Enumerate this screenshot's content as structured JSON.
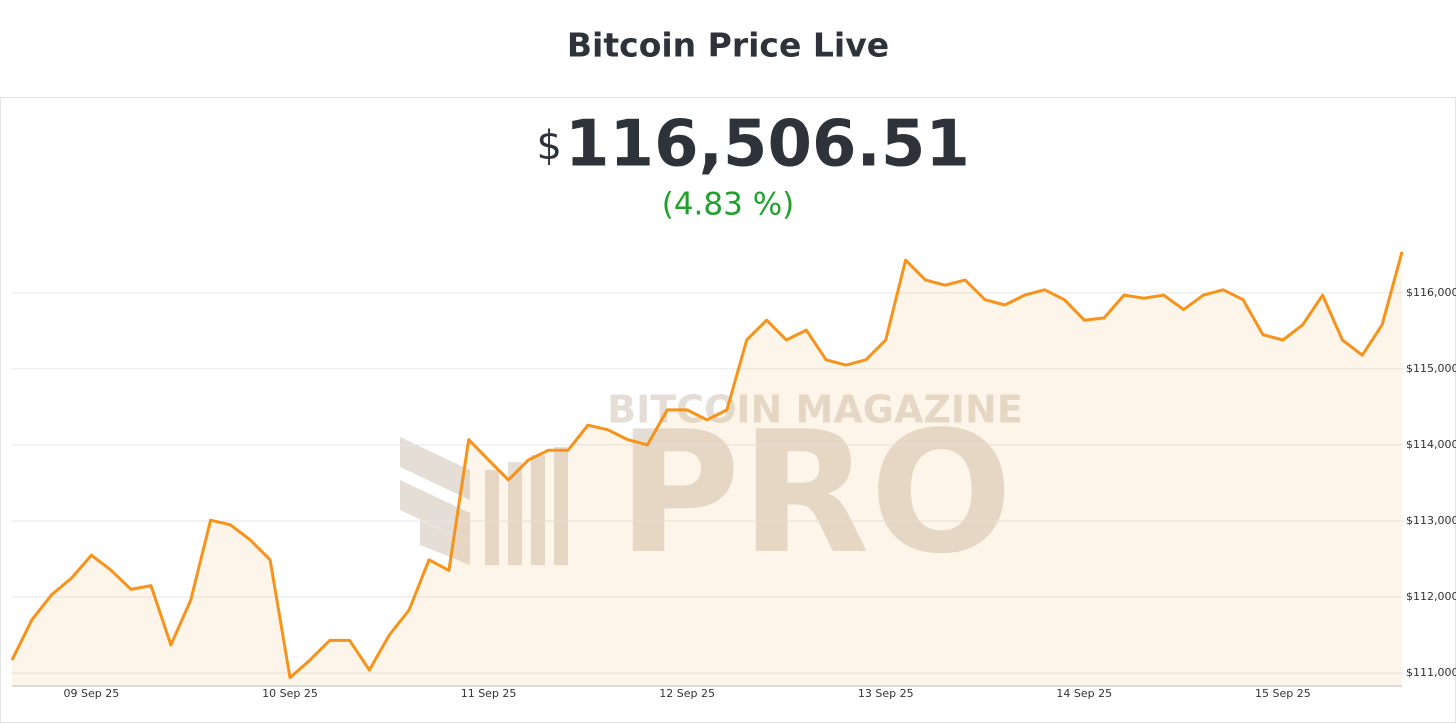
{
  "header": {
    "title": "Bitcoin Price Live",
    "currency_symbol": "$",
    "price": "116,506.51",
    "change": "(4.83 %)"
  },
  "watermark": [
    "BITCOIN MAGAZINE",
    "PRO"
  ],
  "chart_data": {
    "type": "line",
    "color": "#f7931a",
    "grid": true,
    "categories": [
      null,
      null,
      null,
      null,
      "09 Sep 25",
      null,
      null,
      null,
      null,
      null,
      null,
      null,
      null,
      null,
      "10 Sep 25",
      null,
      null,
      null,
      null,
      null,
      null,
      null,
      null,
      null,
      "11 Sep 25",
      null,
      null,
      null,
      null,
      null,
      null,
      null,
      null,
      null,
      "12 Sep 25",
      null,
      null,
      null,
      null,
      null,
      null,
      null,
      null,
      null,
      "13 Sep 25",
      null,
      null,
      null,
      null,
      null,
      null,
      null,
      null,
      null,
      "14 Sep 25",
      null,
      null,
      null,
      null,
      null,
      null,
      null,
      null,
      null,
      "15 Sep 25",
      null,
      null,
      null,
      null,
      null,
      null
    ],
    "values": [
      111171,
      111700,
      112030,
      112250,
      112550,
      112350,
      112100,
      112150,
      111370,
      111960,
      113010,
      112950,
      112750,
      112490,
      110940,
      111170,
      111430,
      111430,
      111040,
      111500,
      111830,
      112490,
      112350,
      114070,
      113800,
      113540,
      113800,
      113930,
      113930,
      114260,
      114200,
      114070,
      114000,
      114460,
      114460,
      114330,
      114460,
      115380,
      115640,
      115380,
      115510,
      115120,
      115050,
      115120,
      115380,
      116430,
      116170,
      116100,
      116170,
      115910,
      115840,
      115970,
      116040,
      115910,
      115640,
      115670,
      115970,
      115930,
      115970,
      115780,
      115970,
      116040,
      115910,
      115450,
      115380,
      115580,
      115970,
      115380,
      115180,
      115580,
      116540
    ],
    "ylim": [
      110830,
      116800
    ],
    "yticks": [
      {
        "value": 111000,
        "label": "$111,000"
      },
      {
        "value": 112000,
        "label": "$112,000"
      },
      {
        "value": 113000,
        "label": "$113,000"
      },
      {
        "value": 114000,
        "label": "$114,000"
      },
      {
        "value": 115000,
        "label": "$115,000"
      },
      {
        "value": 116000,
        "label": "$116,000"
      }
    ]
  }
}
